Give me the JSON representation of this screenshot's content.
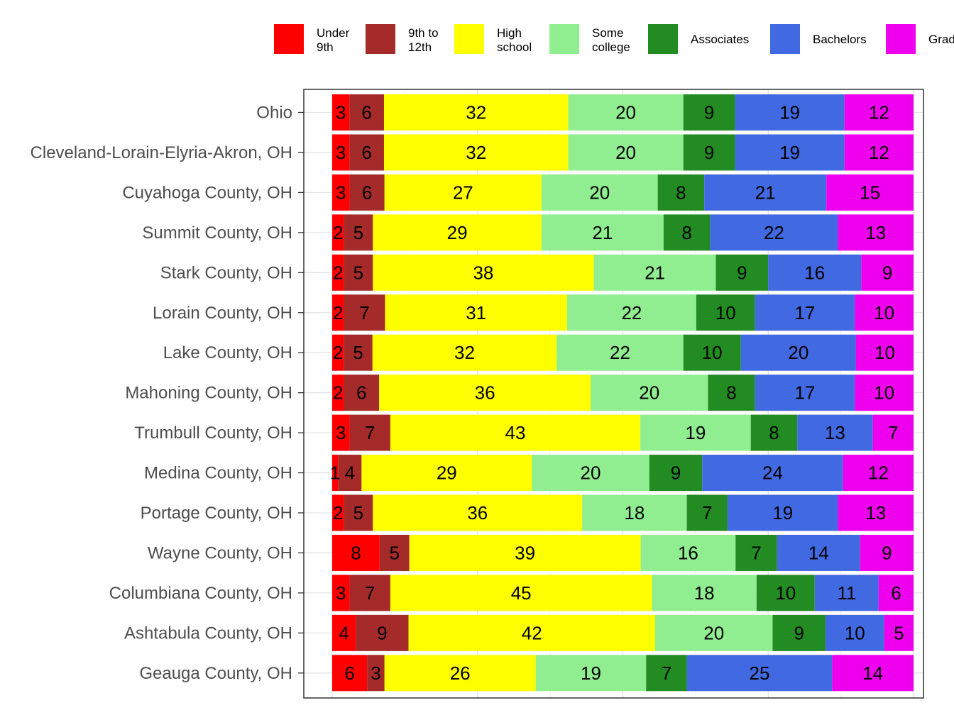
{
  "chart_data": {
    "type": "bar",
    "orientation": "horizontal",
    "stacked": true,
    "normalized_percent": true,
    "title": "",
    "xlabel": "",
    "ylabel": "",
    "xlim": [
      0,
      100
    ],
    "grid": true,
    "legend_position": "top",
    "categories": [
      "Ohio",
      "Cleveland-Lorain-Elyria-Akron, OH",
      "Cuyahoga County, OH",
      "Summit County, OH",
      "Stark County, OH",
      "Lorain County, OH",
      "Lake County, OH",
      "Mahoning County, OH",
      "Trumbull County, OH",
      "Medina County, OH",
      "Portage County, OH",
      "Wayne County, OH",
      "Columbiana County, OH",
      "Ashtabula County, OH",
      "Geauga County, OH"
    ],
    "series": [
      {
        "name": "Under 9th",
        "legend_lines": [
          "Under",
          "9th"
        ],
        "color": "#FF0000",
        "values": [
          3,
          3,
          3,
          2,
          2,
          2,
          2,
          2,
          3,
          1,
          2,
          8,
          3,
          4,
          6
        ]
      },
      {
        "name": "9th to 12th",
        "legend_lines": [
          "9th to",
          "12th"
        ],
        "color": "#A52A2A",
        "values": [
          6,
          6,
          6,
          5,
          5,
          7,
          5,
          6,
          7,
          4,
          5,
          5,
          7,
          9,
          3
        ]
      },
      {
        "name": "High school",
        "legend_lines": [
          "High",
          "school"
        ],
        "color": "#FFFF00",
        "values": [
          32,
          32,
          27,
          29,
          38,
          31,
          32,
          36,
          43,
          29,
          36,
          39,
          45,
          42,
          26
        ]
      },
      {
        "name": "Some college",
        "legend_lines": [
          "Some",
          "college"
        ],
        "color": "#90EE90",
        "values": [
          20,
          20,
          20,
          21,
          21,
          22,
          22,
          20,
          19,
          20,
          18,
          16,
          18,
          20,
          19
        ]
      },
      {
        "name": "Associates",
        "legend_lines": [
          "Associates"
        ],
        "color": "#228B22",
        "values": [
          9,
          9,
          8,
          8,
          9,
          10,
          10,
          8,
          8,
          9,
          7,
          7,
          10,
          9,
          7
        ]
      },
      {
        "name": "Bachelors",
        "legend_lines": [
          "Bachelors"
        ],
        "color": "#4169E1",
        "values": [
          19,
          19,
          21,
          22,
          16,
          17,
          20,
          17,
          13,
          24,
          19,
          14,
          11,
          10,
          25
        ]
      },
      {
        "name": "Grad",
        "legend_lines": [
          "Grad"
        ],
        "color": "#EE00EE",
        "values": [
          12,
          12,
          15,
          13,
          9,
          10,
          10,
          10,
          7,
          12,
          13,
          9,
          6,
          5,
          14
        ]
      }
    ]
  }
}
